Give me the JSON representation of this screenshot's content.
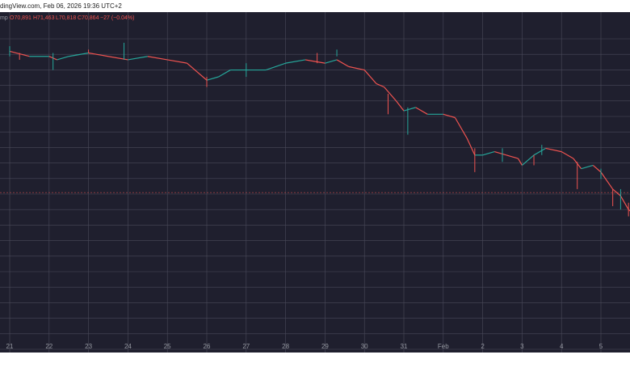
{
  "header": {
    "source_text": "dingView.com, Feb 06, 2026 19:36 UTC+2"
  },
  "chart_data": {
    "type": "candlestick",
    "title": "",
    "legend_text": {
      "symbol_fragment": "mp",
      "open": "O70,891",
      "high": "H71,463",
      "low": "L70,818",
      "close": "C70,864",
      "change": "−27 (−0.04%)"
    },
    "x_ticks": [
      "21",
      "22",
      "23",
      "24",
      "25",
      "26",
      "27",
      "28",
      "29",
      "30",
      "31",
      "Feb",
      "2",
      "3",
      "4",
      "5"
    ],
    "grid": true,
    "colors": {
      "background": "#1f1f2e",
      "grid": "#4a4a5a",
      "up": "#26a69a",
      "down": "#ef5350",
      "axis_text": "#9598a1",
      "legend_text": "#ef5350",
      "price_line": "#ef5350"
    },
    "close_path": [
      [
        0,
        0.115
      ],
      [
        0.5,
        0.13
      ],
      [
        1,
        0.13
      ],
      [
        1.2,
        0.14
      ],
      [
        1.5,
        0.13
      ],
      [
        2,
        0.12
      ],
      [
        2.5,
        0.13
      ],
      [
        3,
        0.14
      ],
      [
        3.5,
        0.13
      ],
      [
        4,
        0.14
      ],
      [
        4.5,
        0.15
      ],
      [
        5,
        0.2
      ],
      [
        5.3,
        0.19
      ],
      [
        5.6,
        0.17
      ],
      [
        6,
        0.17
      ],
      [
        6.5,
        0.17
      ],
      [
        7,
        0.15
      ],
      [
        7.5,
        0.14
      ],
      [
        8,
        0.15
      ],
      [
        8.3,
        0.14
      ],
      [
        8.6,
        0.16
      ],
      [
        9,
        0.17
      ],
      [
        9.3,
        0.21
      ],
      [
        9.5,
        0.22
      ],
      [
        9.8,
        0.26
      ],
      [
        10,
        0.29
      ],
      [
        10.3,
        0.28
      ],
      [
        10.6,
        0.3
      ],
      [
        11,
        0.3
      ],
      [
        11.3,
        0.31
      ],
      [
        11.6,
        0.37
      ],
      [
        11.8,
        0.42
      ],
      [
        12,
        0.42
      ],
      [
        12.3,
        0.41
      ],
      [
        12.6,
        0.42
      ],
      [
        12.9,
        0.43
      ],
      [
        13,
        0.45
      ],
      [
        13.3,
        0.42
      ],
      [
        13.6,
        0.4
      ],
      [
        14,
        0.41
      ],
      [
        14.3,
        0.43
      ],
      [
        14.5,
        0.46
      ],
      [
        14.8,
        0.45
      ],
      [
        15,
        0.47
      ],
      [
        15.3,
        0.52
      ],
      [
        15.5,
        0.54
      ],
      [
        15.7,
        0.58
      ],
      [
        15.9,
        0.6
      ],
      [
        16.1,
        0.62
      ]
    ],
    "candle_extents": [
      [
        0,
        0.1,
        0.13
      ],
      [
        0.25,
        0.12,
        0.14
      ],
      [
        1.1,
        0.12,
        0.17
      ],
      [
        2.0,
        0.11,
        0.12
      ],
      [
        2.9,
        0.09,
        0.14
      ],
      [
        5.0,
        0.19,
        0.22
      ],
      [
        6.0,
        0.15,
        0.19
      ],
      [
        7.8,
        0.12,
        0.15
      ],
      [
        8.3,
        0.11,
        0.13
      ],
      [
        9.6,
        0.24,
        0.3
      ],
      [
        10.1,
        0.28,
        0.36
      ],
      [
        11.8,
        0.4,
        0.47
      ],
      [
        12.5,
        0.4,
        0.44
      ],
      [
        13.3,
        0.42,
        0.45
      ],
      [
        13.5,
        0.39,
        0.42
      ],
      [
        14.4,
        0.44,
        0.52
      ],
      [
        15.0,
        0.46,
        0.49
      ],
      [
        15.3,
        0.52,
        0.57
      ],
      [
        15.5,
        0.52,
        0.58
      ],
      [
        15.7,
        0.56,
        0.6
      ],
      [
        16.0,
        0.58,
        0.62
      ]
    ],
    "last_price_fraction": 0.53
  }
}
